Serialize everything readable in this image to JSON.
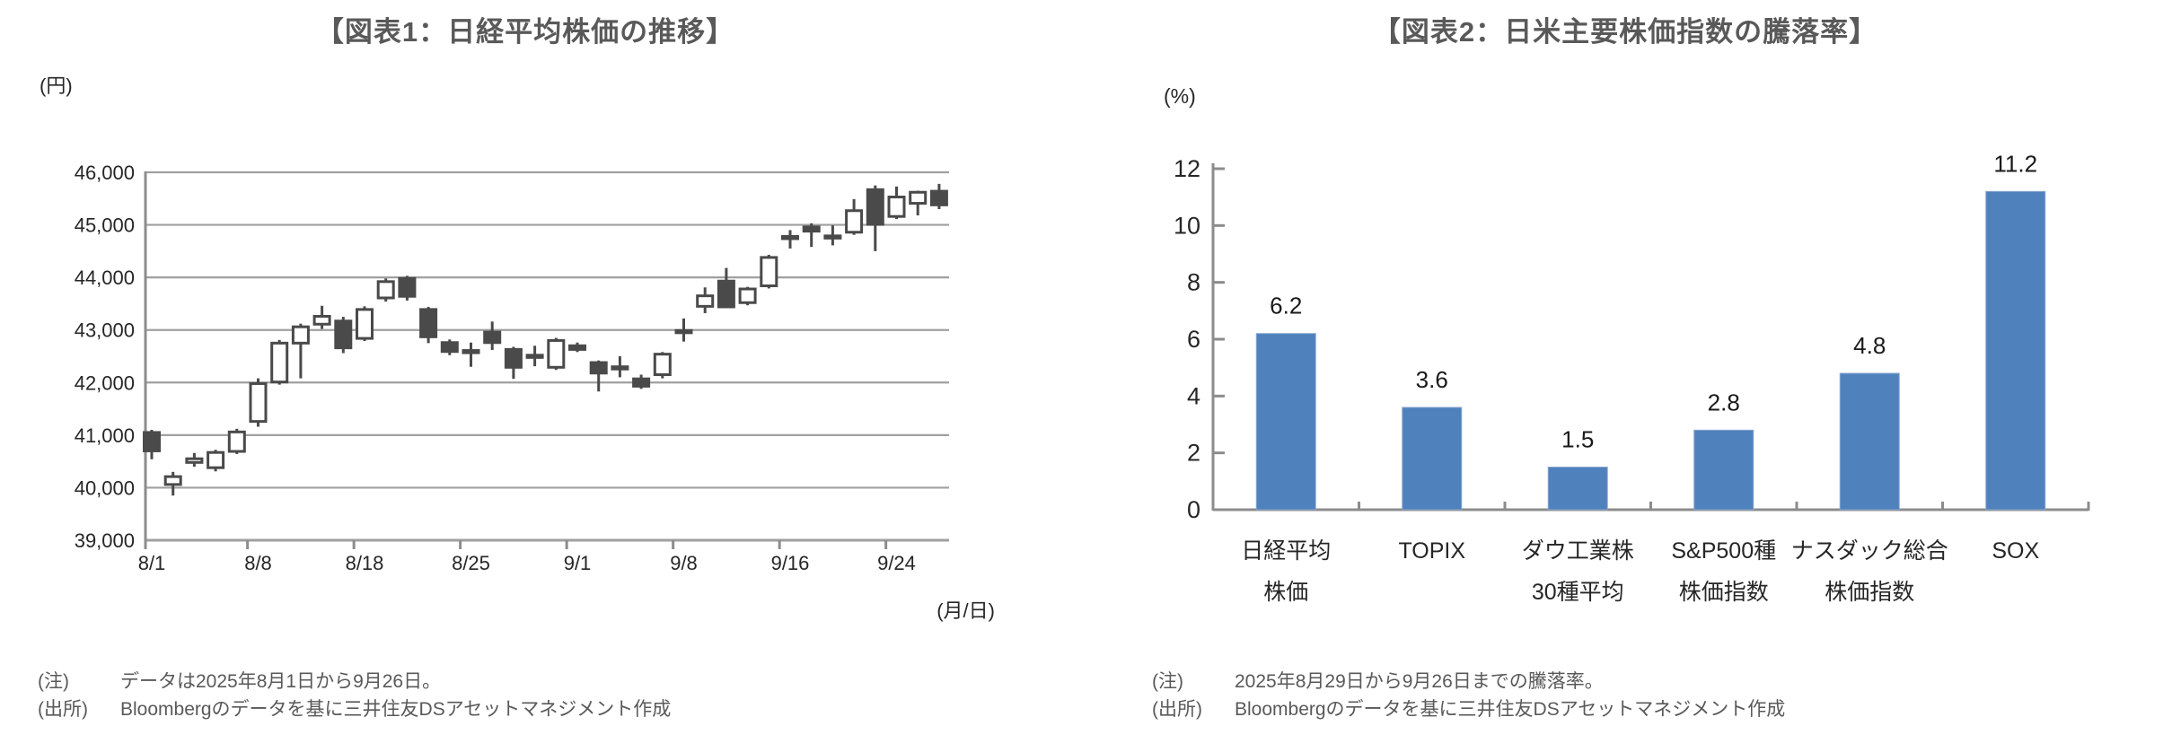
{
  "figure1": {
    "title": "【図表1：日経平均株価の推移】",
    "y_axis_unit": "(円)",
    "x_axis_unit": "(月/日)",
    "y_ticks": [
      "46,000",
      "45,000",
      "44,000",
      "43,000",
      "42,000",
      "41,000",
      "40,000",
      "39,000"
    ],
    "x_ticks": [
      "8/1",
      "8/8",
      "8/18",
      "8/25",
      "9/1",
      "9/8",
      "9/16",
      "9/24"
    ],
    "note_label": "(注)",
    "note_text": "データは2025年8月1日から9月26日。",
    "source_label": "(出所)",
    "source_text": "Bloombergのデータを基に三井住友DSアセットマネジメント作成"
  },
  "figure2": {
    "title": "【図表2：日米主要株価指数の騰落率】",
    "y_axis_unit": "(%)",
    "y_ticks": [
      "12",
      "10",
      "8",
      "6",
      "4",
      "2",
      "0"
    ],
    "note_label": "(注)",
    "note_text": "2025年8月29日から9月26日までの騰落率。",
    "source_label": "(出所)",
    "source_text": "Bloombergのデータを基に三井住友DSアセットマネジメント作成"
  },
  "chart_data": [
    {
      "type": "candlestick",
      "title": "日経平均株価の推移",
      "ylabel": "円",
      "xlabel": "月/日",
      "ylim": [
        39000,
        46000
      ],
      "y_step": 1000,
      "grid": true,
      "x_tick_labels": [
        "8/1",
        "8/8",
        "8/18",
        "8/25",
        "9/1",
        "9/8",
        "9/16",
        "9/24"
      ],
      "x_tick_day_indices": [
        0,
        5,
        10,
        15,
        20,
        25,
        30,
        35
      ],
      "dates": [
        "8/1",
        "8/4",
        "8/5",
        "8/6",
        "8/7",
        "8/8",
        "8/12",
        "8/13",
        "8/14",
        "8/15",
        "8/18",
        "8/19",
        "8/20",
        "8/21",
        "8/22",
        "8/25",
        "8/26",
        "8/27",
        "8/28",
        "8/29",
        "9/1",
        "9/2",
        "9/3",
        "9/4",
        "9/5",
        "9/8",
        "9/9",
        "9/10",
        "9/11",
        "9/12",
        "9/16",
        "9/17",
        "9/18",
        "9/19",
        "9/22",
        "9/24",
        "9/25",
        "9/26"
      ],
      "ohlc": [
        [
          41050,
          41100,
          40540,
          40700
        ],
        [
          40060,
          40300,
          39850,
          40210
        ],
        [
          40480,
          40660,
          40400,
          40550
        ],
        [
          40380,
          40720,
          40310,
          40670
        ],
        [
          40690,
          41120,
          40640,
          41060
        ],
        [
          41260,
          42080,
          41160,
          41980
        ],
        [
          42010,
          42810,
          41960,
          42750
        ],
        [
          42750,
          43120,
          42080,
          43060
        ],
        [
          43110,
          43460,
          43020,
          43260
        ],
        [
          43170,
          43250,
          42560,
          42660
        ],
        [
          42840,
          43450,
          42790,
          43390
        ],
        [
          43610,
          43980,
          43540,
          43920
        ],
        [
          43980,
          44030,
          43560,
          43640
        ],
        [
          43390,
          43440,
          42750,
          42870
        ],
        [
          42760,
          42820,
          42520,
          42590
        ],
        [
          42610,
          42760,
          42300,
          42580
        ],
        [
          42960,
          43160,
          42620,
          42760
        ],
        [
          42630,
          42680,
          42070,
          42290
        ],
        [
          42520,
          42700,
          42310,
          42490
        ],
        [
          42290,
          42850,
          42240,
          42800
        ],
        [
          42700,
          42760,
          42580,
          42630
        ],
        [
          42380,
          42420,
          41830,
          42180
        ],
        [
          42300,
          42500,
          42100,
          42280
        ],
        [
          42070,
          42150,
          41880,
          41930
        ],
        [
          42150,
          42580,
          42080,
          42540
        ],
        [
          42990,
          43220,
          42780,
          42960
        ],
        [
          43450,
          43810,
          43320,
          43650
        ],
        [
          43930,
          44180,
          43420,
          43440
        ],
        [
          43520,
          43820,
          43470,
          43780
        ],
        [
          43840,
          44430,
          43790,
          44380
        ],
        [
          44780,
          44900,
          44550,
          44760
        ],
        [
          44960,
          45030,
          44580,
          44880
        ],
        [
          44790,
          44990,
          44610,
          44770
        ],
        [
          44860,
          45490,
          44810,
          45270
        ],
        [
          45670,
          45750,
          44500,
          45010
        ],
        [
          45160,
          45730,
          45110,
          45530
        ],
        [
          45410,
          45650,
          45180,
          45620
        ],
        [
          45640,
          45780,
          45300,
          45380
        ]
      ],
      "up_color": "#ffffff",
      "down_color": "#4a4a4a",
      "outline_color": "#4a4a4a"
    },
    {
      "type": "bar",
      "title": "日米主要株価指数の騰落率",
      "ylabel": "%",
      "ylim": [
        0,
        12
      ],
      "y_step": 2,
      "grid": false,
      "categories_line1": [
        "日経平均",
        "TOPIX",
        "ダウ工業株",
        "S&P500種",
        "ナスダック総合",
        "SOX"
      ],
      "categories_line2": [
        "株価",
        "",
        "30種平均",
        "株価指数",
        "株価指数",
        ""
      ],
      "values": [
        6.2,
        3.6,
        1.5,
        2.8,
        4.8,
        11.2
      ],
      "bar_color": "#4f81bd",
      "bar_edge_color": "#8aa7cf",
      "value_label_color": "#1a1a1a"
    }
  ],
  "style": {
    "grid_color": "#a0a0a0",
    "axis_color": "#8c8c8c",
    "tick_label_color": "#262626"
  }
}
